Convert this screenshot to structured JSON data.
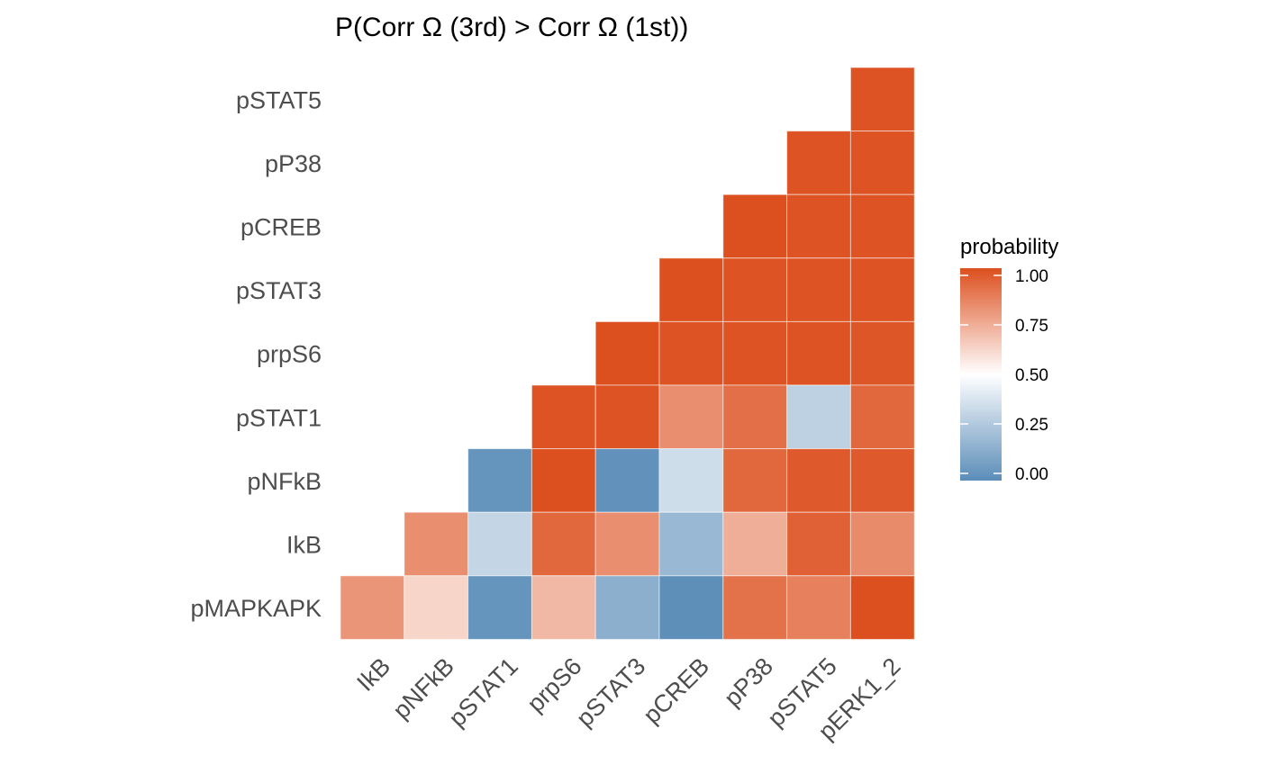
{
  "chart_data": {
    "type": "heatmap",
    "title": "P(Corr Ω (3rd) > Corr Ω (1st))",
    "x_categories": [
      "IkB",
      "pNFkB",
      "pSTAT1",
      "prpS6",
      "pSTAT3",
      "pCREB",
      "pP38",
      "pSTAT5",
      "pERK1_2"
    ],
    "y_categories": [
      "pSTAT5",
      "pP38",
      "pCREB",
      "pSTAT3",
      "prpS6",
      "pSTAT1",
      "pNFkB",
      "IkB",
      "pMAPKAPK"
    ],
    "rows": [
      {
        "row": "pSTAT5",
        "values": [
          null,
          null,
          null,
          null,
          null,
          null,
          null,
          null,
          0.99
        ]
      },
      {
        "row": "pP38",
        "values": [
          null,
          null,
          null,
          null,
          null,
          null,
          null,
          0.99,
          0.99
        ]
      },
      {
        "row": "pCREB",
        "values": [
          null,
          null,
          null,
          null,
          null,
          null,
          1.0,
          0.99,
          0.99
        ]
      },
      {
        "row": "pSTAT3",
        "values": [
          null,
          null,
          null,
          null,
          null,
          1.0,
          0.99,
          0.99,
          0.99
        ]
      },
      {
        "row": "prpS6",
        "values": [
          null,
          null,
          null,
          null,
          1.0,
          0.99,
          0.99,
          0.99,
          0.98
        ]
      },
      {
        "row": "pSTAT1",
        "values": [
          null,
          null,
          null,
          0.99,
          0.99,
          0.82,
          0.91,
          0.3,
          0.93
        ]
      },
      {
        "row": "pNFkB",
        "values": [
          null,
          null,
          0.03,
          1.0,
          0.02,
          0.35,
          0.93,
          0.97,
          0.97
        ]
      },
      {
        "row": "IkB",
        "values": [
          null,
          0.82,
          0.32,
          0.93,
          0.82,
          0.19,
          0.73,
          0.95,
          0.83
        ]
      },
      {
        "row": "pMAPKAPK",
        "values": [
          0.8,
          0.62,
          0.03,
          0.7,
          0.15,
          0.01,
          0.9,
          0.86,
          1.0
        ]
      }
    ],
    "legend": {
      "title": "probability",
      "ticks": [
        "1.00",
        "0.75",
        "0.50",
        "0.25",
        "0.00"
      ],
      "tick_values": [
        1.0,
        0.75,
        0.5,
        0.25,
        0.0
      ],
      "range": [
        0,
        1
      ],
      "placement": "right"
    },
    "colors": {
      "low": "#5b8db8",
      "mid": "#ffffff",
      "high": "#dc4f1e"
    }
  }
}
